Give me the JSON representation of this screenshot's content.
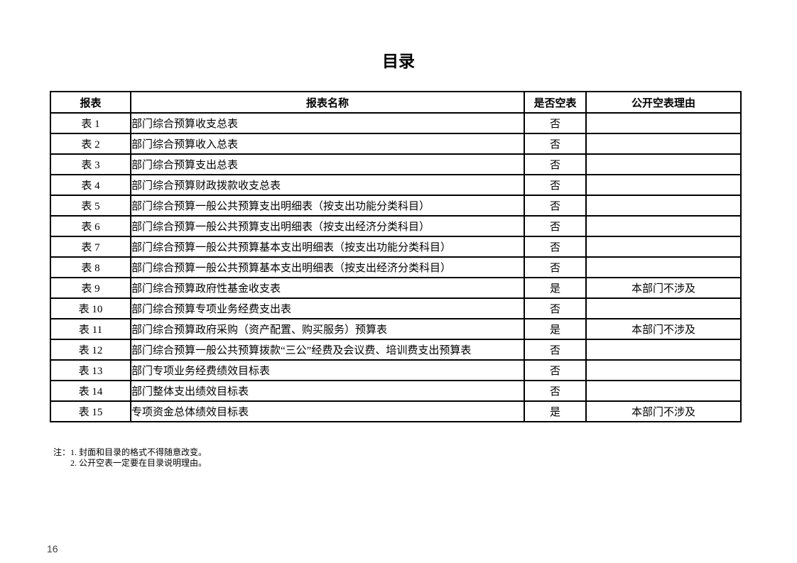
{
  "page": {
    "title": "目录",
    "page_number": "16"
  },
  "table": {
    "headers": [
      "报表",
      "报表名称",
      "是否空表",
      "公开空表理由"
    ],
    "rows": [
      {
        "id": "表 1",
        "name": "部门综合预算收支总表",
        "empty": "否",
        "reason": ""
      },
      {
        "id": "表 2",
        "name": "部门综合预算收入总表",
        "empty": "否",
        "reason": ""
      },
      {
        "id": "表 3",
        "name": "部门综合预算支出总表",
        "empty": "否",
        "reason": ""
      },
      {
        "id": "表 4",
        "name": "部门综合预算财政拨款收支总表",
        "empty": "否",
        "reason": ""
      },
      {
        "id": "表 5",
        "name": "部门综合预算一般公共预算支出明细表（按支出功能分类科目）",
        "empty": "否",
        "reason": ""
      },
      {
        "id": "表 6",
        "name": "部门综合预算一般公共预算支出明细表（按支出经济分类科目）",
        "empty": "否",
        "reason": ""
      },
      {
        "id": "表 7",
        "name": "部门综合预算一般公共预算基本支出明细表（按支出功能分类科目）",
        "empty": "否",
        "reason": ""
      },
      {
        "id": "表 8",
        "name": "部门综合预算一般公共预算基本支出明细表（按支出经济分类科目）",
        "empty": "否",
        "reason": ""
      },
      {
        "id": "表 9",
        "name": "部门综合预算政府性基金收支表",
        "empty": "是",
        "reason": "本部门不涉及"
      },
      {
        "id": "表 10",
        "name": "部门综合预算专项业务经费支出表",
        "empty": "否",
        "reason": ""
      },
      {
        "id": "表 11",
        "name": "部门综合预算政府采购（资产配置、购买服务）预算表",
        "empty": "是",
        "reason": "本部门不涉及"
      },
      {
        "id": "表 12",
        "name": "部门综合预算一般公共预算拨款“三公”经费及会议费、培训费支出预算表",
        "empty": "否",
        "reason": ""
      },
      {
        "id": "表 13",
        "name": "部门专项业务经费绩效目标表",
        "empty": "否",
        "reason": ""
      },
      {
        "id": "表 14",
        "name": "部门整体支出绩效目标表",
        "empty": "否",
        "reason": ""
      },
      {
        "id": "表 15",
        "name": "专项资金总体绩效目标表",
        "empty": "是",
        "reason": "本部门不涉及"
      }
    ]
  },
  "notes": {
    "line1": "注：1. 封面和目录的格式不得随意改变。",
    "line2": "2. 公开空表一定要在目录说明理由。"
  }
}
